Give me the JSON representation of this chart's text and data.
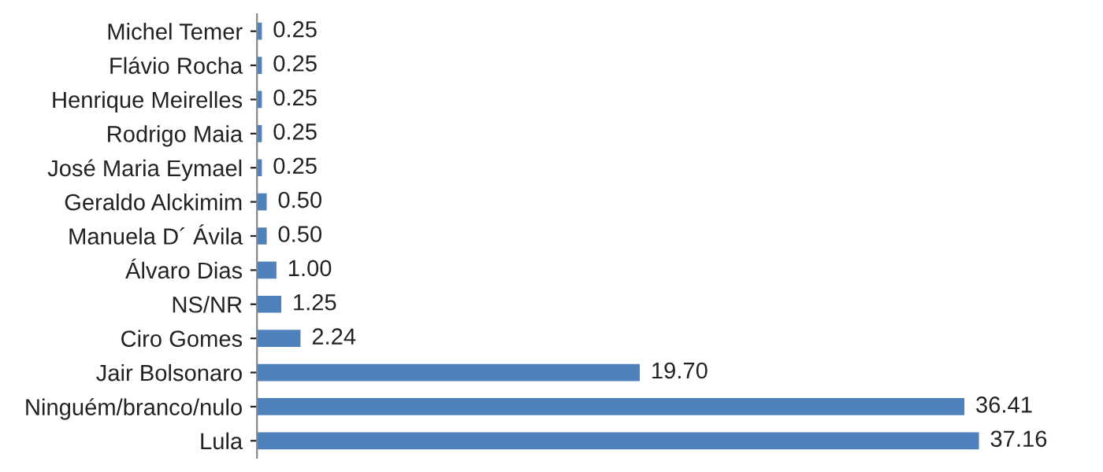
{
  "chart_data": {
    "type": "bar",
    "orientation": "horizontal",
    "categories": [
      "Michel Temer",
      "Flávio Rocha",
      "Henrique Meirelles",
      "Rodrigo Maia",
      "José Maria Eymael",
      "Geraldo Alckimim",
      "Manuela D´ Ávila",
      "Álvaro Dias",
      "NS/NR",
      "Ciro Gomes",
      "Jair Bolsonaro",
      "Ninguém/branco/nulo",
      "Lula"
    ],
    "values": [
      0.25,
      0.25,
      0.25,
      0.25,
      0.25,
      0.5,
      0.5,
      1.0,
      1.25,
      2.24,
      19.7,
      36.41,
      37.16
    ],
    "value_labels": [
      "0.25",
      "0.25",
      "0.25",
      "0.25",
      "0.25",
      "0.50",
      "0.50",
      "1.00",
      "1.25",
      "2.24",
      "19.70",
      "36.41",
      "37.16"
    ],
    "color": "#4f81bd",
    "grid": false,
    "legend": false
  }
}
